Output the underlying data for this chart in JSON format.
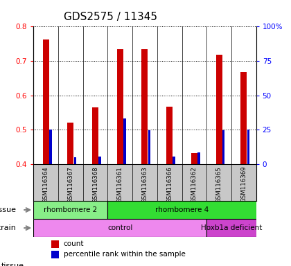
{
  "title": "GDS2575 / 11345",
  "samples": [
    "GSM116364",
    "GSM116367",
    "GSM116368",
    "GSM116361",
    "GSM116363",
    "GSM116366",
    "GSM116362",
    "GSM116365",
    "GSM116369"
  ],
  "count_values": [
    0.762,
    0.522,
    0.565,
    0.735,
    0.735,
    0.568,
    0.432,
    0.718,
    0.668
  ],
  "count_base": 0.4,
  "percentile_values": [
    25,
    5,
    5.5,
    33.5,
    24.5,
    5.5,
    8.5,
    24.5,
    25
  ],
  "ylim": [
    0.4,
    0.8
  ],
  "yticks": [
    0.4,
    0.5,
    0.6,
    0.7,
    0.8
  ],
  "right_ylim": [
    0,
    100
  ],
  "right_yticks": [
    0,
    25,
    50,
    75,
    100
  ],
  "right_ytick_labels": [
    "0",
    "25",
    "50",
    "75",
    "100%"
  ],
  "bar_color": "#cc0000",
  "percentile_color": "#0000cc",
  "background_color": "#ffffff",
  "plot_bg_color": "#ffffff",
  "tick_bg_color": "#c8c8c8",
  "tissue_colors": [
    "#88ee88",
    "#33dd33"
  ],
  "strain_colors": [
    "#ee88ee",
    "#cc44cc"
  ],
  "tissue_row": [
    {
      "label": "rhombomere 2",
      "start": 0,
      "end": 3
    },
    {
      "label": "rhombomere 4",
      "start": 3,
      "end": 9
    }
  ],
  "strain_row": [
    {
      "label": "control",
      "start": 0,
      "end": 7
    },
    {
      "label": "Hoxb1a deficient",
      "start": 7,
      "end": 9
    }
  ],
  "tissue_label": "tissue",
  "strain_label": "strain",
  "legend_count_label": "count",
  "legend_percentile_label": "percentile rank within the sample",
  "title_fontsize": 11,
  "tick_fontsize": 7.5,
  "bar_width": 0.25,
  "pct_bar_width": 0.1
}
